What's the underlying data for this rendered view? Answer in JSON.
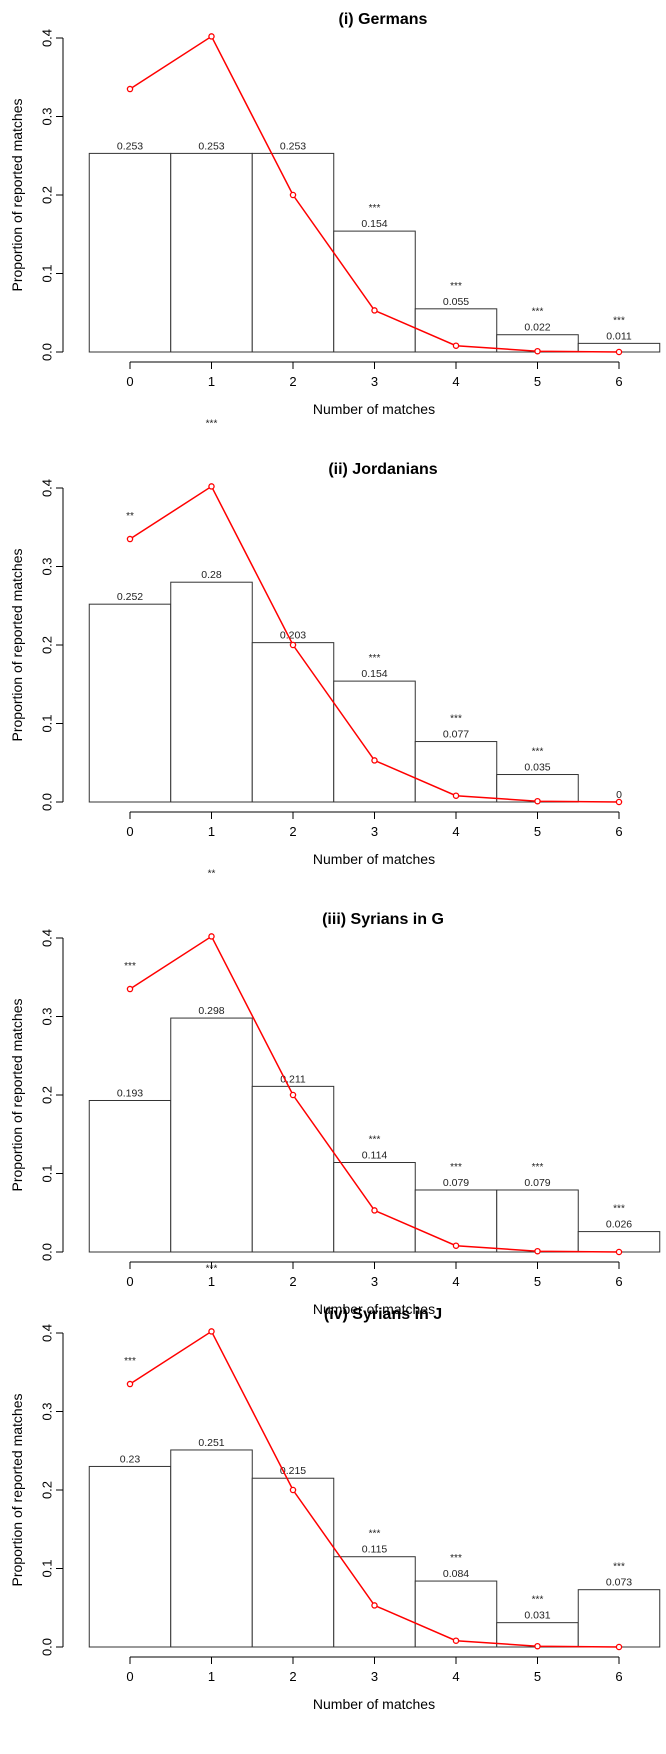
{
  "chart_data": [
    {
      "type": "bar",
      "title": "(i) Germans",
      "xlabel": "Number of matches",
      "ylabel": "Proportion of reported matches",
      "categories": [
        "0",
        "1",
        "2",
        "3",
        "4",
        "5",
        "6"
      ],
      "y_ticks": [
        "0.0",
        "0.1",
        "0.2",
        "0.3",
        "0.4"
      ],
      "ylim": [
        0,
        0.4
      ],
      "grid": false,
      "series": [
        {
          "type": "bar",
          "values": [
            0.253,
            0.253,
            0.253,
            0.154,
            0.055,
            0.022,
            0.011
          ]
        },
        {
          "type": "line",
          "color": "#ff0000",
          "values": [
            0.335,
            0.402,
            0.2,
            0.053,
            0.008,
            0.001,
            0.0
          ]
        }
      ],
      "data_labels": [
        "0.253",
        "0.253",
        "0.253",
        "0.154",
        "0.055",
        "0.022",
        "0.011"
      ],
      "significance": [
        "",
        "***",
        "",
        "***",
        "***",
        "***",
        "***"
      ]
    },
    {
      "type": "bar",
      "title": "(ii) Jordanians",
      "xlabel": "Number of matches",
      "ylabel": "Proportion of reported matches",
      "categories": [
        "0",
        "1",
        "2",
        "3",
        "4",
        "5",
        "6"
      ],
      "y_ticks": [
        "0.0",
        "0.1",
        "0.2",
        "0.3",
        "0.4"
      ],
      "ylim": [
        0,
        0.4
      ],
      "grid": false,
      "series": [
        {
          "type": "bar",
          "values": [
            0.252,
            0.28,
            0.203,
            0.154,
            0.077,
            0.035,
            0
          ]
        },
        {
          "type": "line",
          "color": "#ff0000",
          "values": [
            0.335,
            0.402,
            0.2,
            0.053,
            0.008,
            0.001,
            0.0
          ]
        }
      ],
      "data_labels": [
        "0.252",
        "0.28",
        "0.203",
        "0.154",
        "0.077",
        "0.035",
        "0"
      ],
      "significance": [
        "**",
        "***",
        "",
        "***",
        "***",
        "***",
        ""
      ]
    },
    {
      "type": "bar",
      "title": "(iii) Syrians in G",
      "xlabel": "Number of matches",
      "ylabel": "Proportion of reported matches",
      "categories": [
        "0",
        "1",
        "2",
        "3",
        "4",
        "5",
        "6"
      ],
      "y_ticks": [
        "0.0",
        "0.1",
        "0.2",
        "0.3",
        "0.4"
      ],
      "ylim": [
        0,
        0.4
      ],
      "grid": false,
      "series": [
        {
          "type": "bar",
          "values": [
            0.193,
            0.298,
            0.211,
            0.114,
            0.079,
            0.079,
            0.026
          ]
        },
        {
          "type": "line",
          "color": "#ff0000",
          "values": [
            0.335,
            0.402,
            0.2,
            0.053,
            0.008,
            0.001,
            0.0
          ]
        }
      ],
      "data_labels": [
        "0.193",
        "0.298",
        "0.211",
        "0.114",
        "0.079",
        "0.079",
        "0.026"
      ],
      "significance": [
        "***",
        "**",
        "",
        "***",
        "***",
        "***",
        "***"
      ]
    },
    {
      "type": "bar",
      "title": "(iv) Syrians in J",
      "xlabel": "Number of matches",
      "ylabel": "Proportion of reported matches",
      "categories": [
        "0",
        "1",
        "2",
        "3",
        "4",
        "5",
        "6"
      ],
      "y_ticks": [
        "0.0",
        "0.1",
        "0.2",
        "0.3",
        "0.4"
      ],
      "ylim": [
        0,
        0.4
      ],
      "grid": false,
      "series": [
        {
          "type": "bar",
          "values": [
            0.23,
            0.251,
            0.215,
            0.115,
            0.084,
            0.031,
            0.073
          ]
        },
        {
          "type": "line",
          "color": "#ff0000",
          "values": [
            0.335,
            0.402,
            0.2,
            0.053,
            0.008,
            0.001,
            0.0
          ]
        }
      ],
      "data_labels": [
        "0.23",
        "0.251",
        "0.215",
        "0.115",
        "0.084",
        "0.031",
        "0.073"
      ],
      "significance": [
        "***",
        "***",
        "",
        "***",
        "***",
        "***",
        "***"
      ]
    }
  ]
}
